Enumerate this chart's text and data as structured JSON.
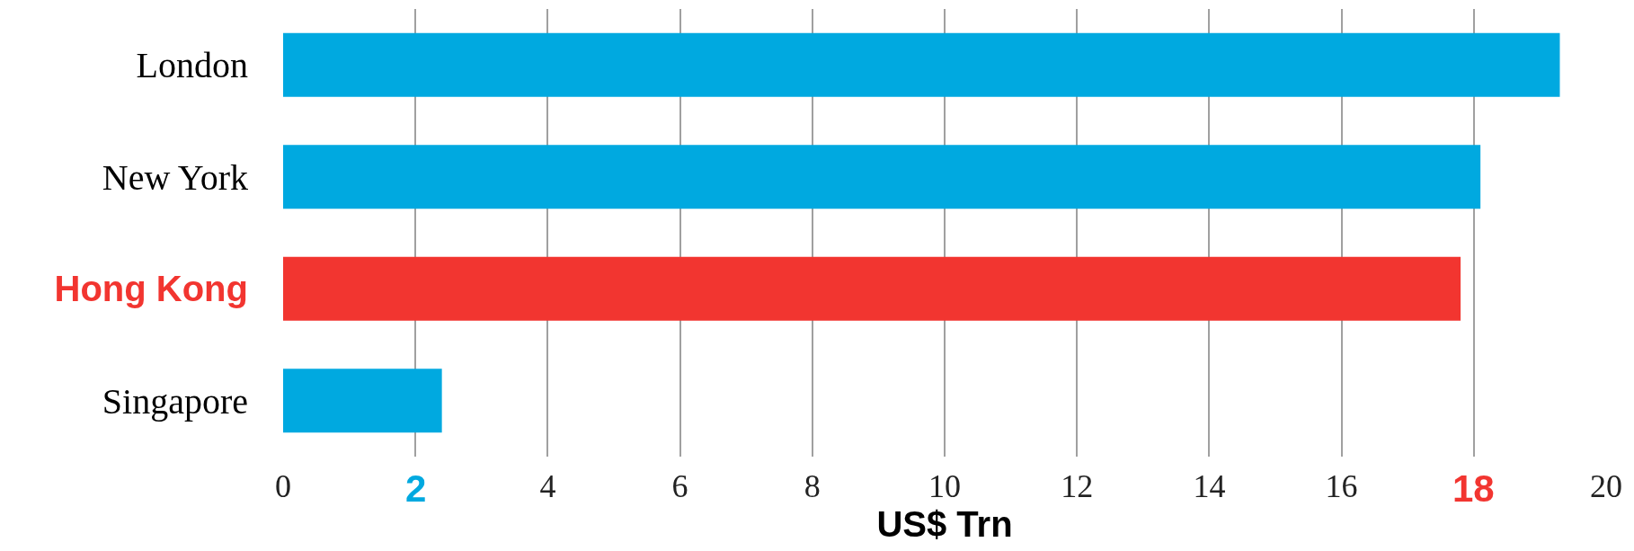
{
  "chart_data": {
    "type": "bar",
    "orientation": "horizontal",
    "categories": [
      "London",
      "New York",
      "Hong Kong",
      "Singapore"
    ],
    "values": [
      19.3,
      18.1,
      17.8,
      2.4
    ],
    "colors": [
      "#00a9e0",
      "#00a9e0",
      "#f23530",
      "#00a9e0"
    ],
    "xlim": [
      0,
      20
    ],
    "xticks": [
      0,
      {
        "value": 2,
        "label": null
      },
      4,
      6,
      8,
      10,
      12,
      14,
      16,
      {
        "value": 18,
        "label": null
      },
      20
    ],
    "grid": "x",
    "xlabel": "US$ Trn",
    "annotations": [
      "2",
      "18"
    ]
  }
}
